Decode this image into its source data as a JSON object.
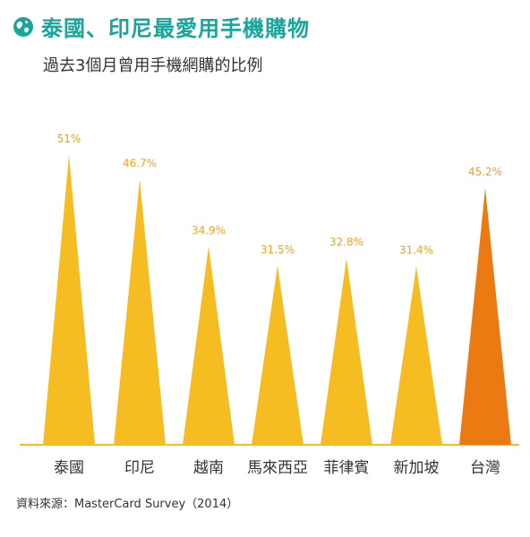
{
  "header": {
    "icon": "globe-icon",
    "title": "泰國、印尼最愛用手機購物"
  },
  "subtitle": "過去3個月曾用手機網購的比例",
  "source": "資料來源：MasterCard Survey（2014）",
  "colors": {
    "title": "#1aa59a",
    "bar": "#f5bd22",
    "highlight": "#ec7a12",
    "value_label": "#f0a020",
    "baseline": "#f5bd22",
    "text": "#333333"
  },
  "chart_data": {
    "type": "bar",
    "style": "pointed-triangle",
    "title": "泰國、印尼最愛用手機購物",
    "subtitle": "過去3個月曾用手機網購的比例",
    "categories": [
      "泰國",
      "印尼",
      "越南",
      "馬來西亞",
      "菲律賓",
      "新加坡",
      "台灣"
    ],
    "values": [
      51,
      46.7,
      34.9,
      31.5,
      32.8,
      31.4,
      45.2
    ],
    "value_labels": [
      "51%",
      "46.7%",
      "34.9%",
      "31.5%",
      "32.8%",
      "31.4%",
      "45.2%"
    ],
    "highlight_index": 6,
    "unit": "%",
    "ylim": [
      0,
      51
    ],
    "grid": false,
    "legend": "none",
    "source": "資料來源：MasterCard Survey（2014）"
  }
}
